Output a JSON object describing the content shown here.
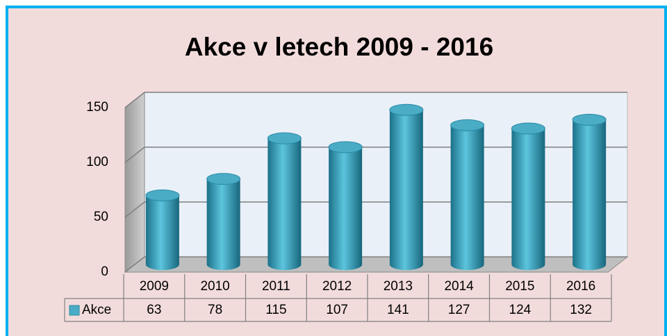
{
  "chart_data": {
    "type": "bar3d",
    "title": "Akce v letech 2009 - 2016",
    "categories": [
      "2009",
      "2010",
      "2011",
      "2012",
      "2013",
      "2014",
      "2015",
      "2016"
    ],
    "series": [
      {
        "name": "Akce",
        "color": "#4bacc6",
        "values": [
          63,
          78,
          115,
          107,
          141,
          127,
          124,
          132
        ]
      }
    ],
    "ylim": [
      0,
      150
    ],
    "yticks": [
      0,
      50,
      100,
      150
    ],
    "grid": true
  }
}
